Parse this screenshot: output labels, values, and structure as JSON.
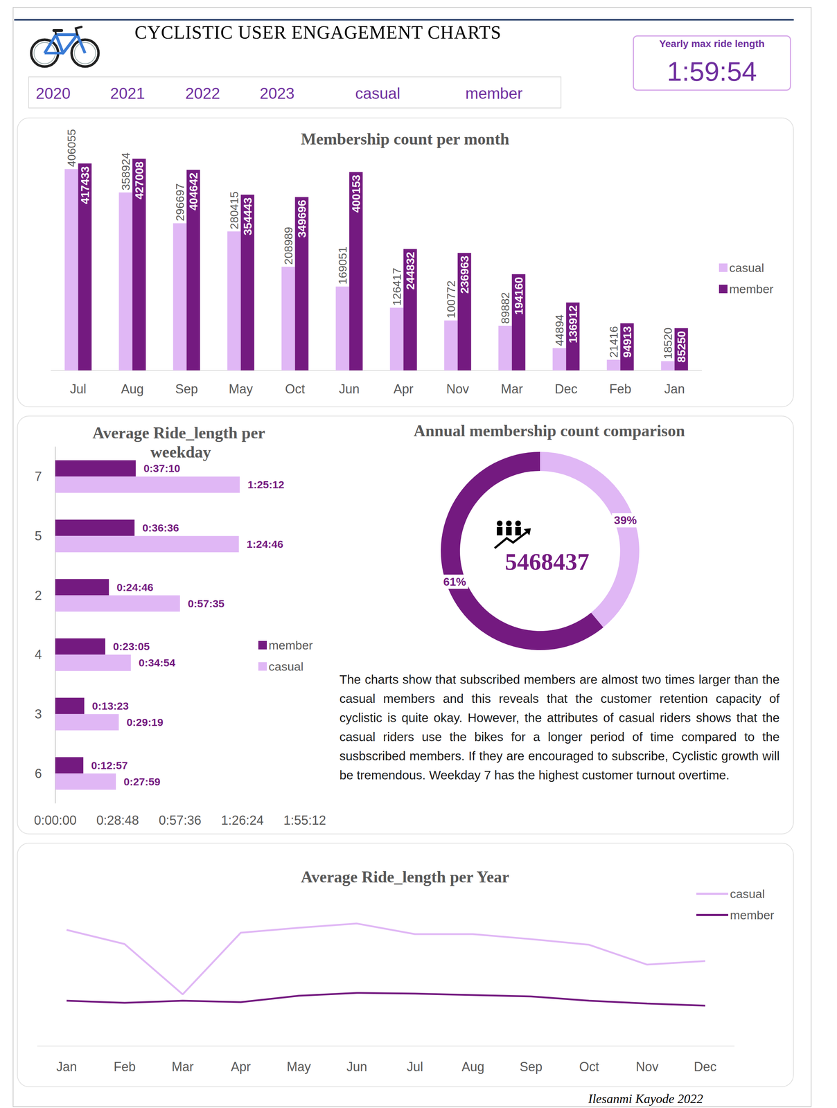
{
  "title": "CYCLISTIC USER ENGAGEMENT CHARTS",
  "filters": [
    "2020",
    "2021",
    "2022",
    "2023",
    "casual",
    "member"
  ],
  "kpi": {
    "label": "Yearly max ride length",
    "value": "1:59:54"
  },
  "note": "The charts show that subscribed members are almost two times larger than the casual members and this reveals that the customer retention capacity of cyclistic is quite okay. However, the attributes of casual riders shows that the casual riders use the bikes for a longer period of time compared to the susbscribed members. If they are encouraged to subscribe, Cyclistic growth will be tremendous. Weekday 7 has the highest customer turnout overtime.",
  "author": "Ilesanmi Kayode 2022",
  "chart_data": [
    {
      "type": "bar",
      "title": "Membership count per month",
      "categories": [
        "Jul",
        "Aug",
        "Sep",
        "May",
        "Oct",
        "Jun",
        "Apr",
        "Nov",
        "Mar",
        "Dec",
        "Feb",
        "Jan"
      ],
      "series": [
        {
          "name": "casual",
          "color": "#e0b7f5",
          "values": [
            406055,
            358924,
            296697,
            280415,
            208989,
            169051,
            126417,
            100772,
            89882,
            44894,
            21416,
            18520
          ]
        },
        {
          "name": "member",
          "color": "#741a80",
          "values": [
            417433,
            427008,
            404642,
            354443,
            349696,
            400153,
            244832,
            236963,
            194160,
            136912,
            94913,
            85250
          ]
        }
      ],
      "ylim": [
        0,
        450000
      ],
      "tick_labels": "x",
      "data_labels": true,
      "legend": "right",
      "grid": false
    },
    {
      "type": "bar",
      "orientation": "horizontal",
      "title": "Average Ride_length per weekday",
      "categories": [
        "7",
        "5",
        "2",
        "4",
        "3",
        "6"
      ],
      "series": [
        {
          "name": "member",
          "color": "#741a80",
          "values": [
            2230,
            2196,
            1486,
            1385,
            803,
            777
          ],
          "value_labels": [
            "0:37:10",
            "0:36:36",
            "0:24:46",
            "0:23:05",
            "0:13:23",
            "0:12:57"
          ]
        },
        {
          "name": "casual",
          "color": "#e0b7f5",
          "values": [
            5112,
            5086,
            3455,
            2094,
            1759,
            1679
          ],
          "value_labels": [
            "1:25:12",
            "1:24:46",
            "0:57:35",
            "0:34:54",
            "0:29:19",
            "0:27:59"
          ]
        }
      ],
      "xlim": [
        0,
        6912
      ],
      "xticks": [
        {
          "value": 0,
          "label": "0:00:00"
        },
        {
          "value": 1728,
          "label": "0:28:48"
        },
        {
          "value": 3456,
          "label": "0:57:36"
        },
        {
          "value": 5184,
          "label": "1:26:24"
        },
        {
          "value": 6912,
          "label": "1:55:12"
        }
      ],
      "data_labels": true,
      "legend": "right",
      "grid": false
    },
    {
      "type": "pie",
      "title": "Annual membership count comparison",
      "categories": [
        "casual",
        "member"
      ],
      "values": [
        39,
        61
      ],
      "value_labels": [
        "39%",
        "61%"
      ],
      "colors": [
        "#e0b7f5",
        "#741a80"
      ],
      "total": 5468437,
      "data_labels": true
    },
    {
      "type": "line",
      "title": "Average Ride_length per Year",
      "categories": [
        "Jan",
        "Feb",
        "Mar",
        "Apr",
        "May",
        "Jun",
        "Jul",
        "Aug",
        "Sep",
        "Oct",
        "Nov",
        "Dec"
      ],
      "series": [
        {
          "name": "casual",
          "color": "#e0b7f5",
          "values": [
            2497,
            2192,
            1111,
            2436,
            2542,
            2633,
            2405,
            2405,
            2298,
            2177,
            1750,
            1827
          ]
        },
        {
          "name": "member",
          "color": "#741a80",
          "values": [
            974,
            929,
            974,
            944,
            1081,
            1142,
            1126,
            1096,
            1066,
            974,
            913,
            868
          ]
        }
      ],
      "ylim": [
        0,
        3456
      ],
      "tick_labels": "x",
      "legend": "top-right",
      "grid": false
    }
  ]
}
